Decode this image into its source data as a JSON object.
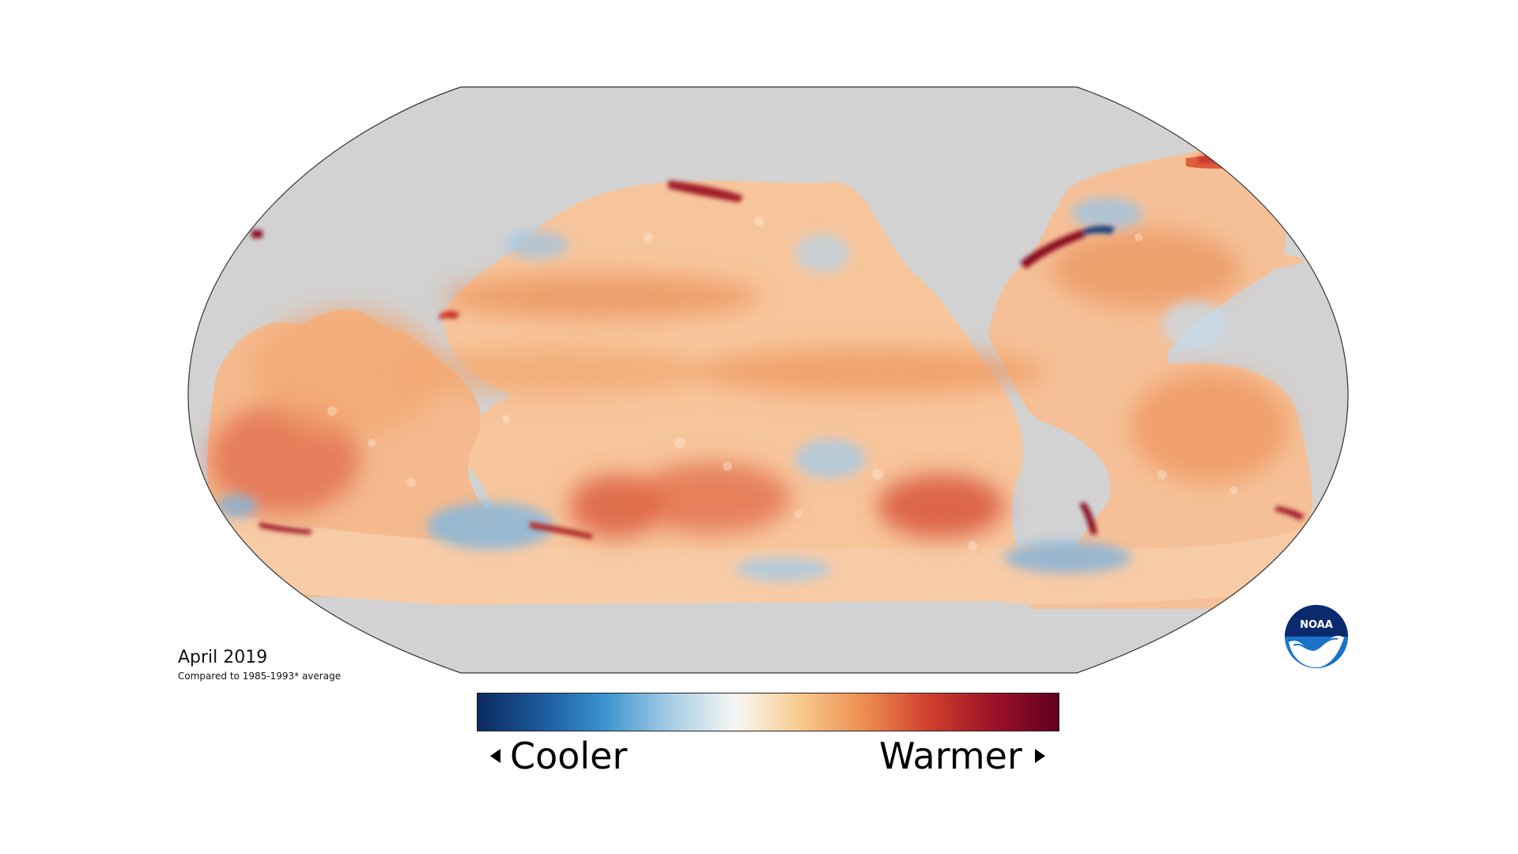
{
  "map": {
    "projection": "Robinson",
    "land_color": "#d2d2d2",
    "ocean_base_color": "#f6c39a"
  },
  "caption": {
    "date": "April 2019",
    "note": "Compared to 1985-1993* average"
  },
  "legend": {
    "low_label": "Cooler",
    "high_label": "Warmer",
    "colors": [
      "#0b2a5e",
      "#1b5a9c",
      "#3d95cf",
      "#a9cde6",
      "#f7f7f4",
      "#f7c98d",
      "#ec8c4e",
      "#cf3e2d",
      "#9c1228",
      "#62001e"
    ]
  },
  "logo": {
    "text": "NOAA",
    "icon": "noaa-logo-icon"
  }
}
